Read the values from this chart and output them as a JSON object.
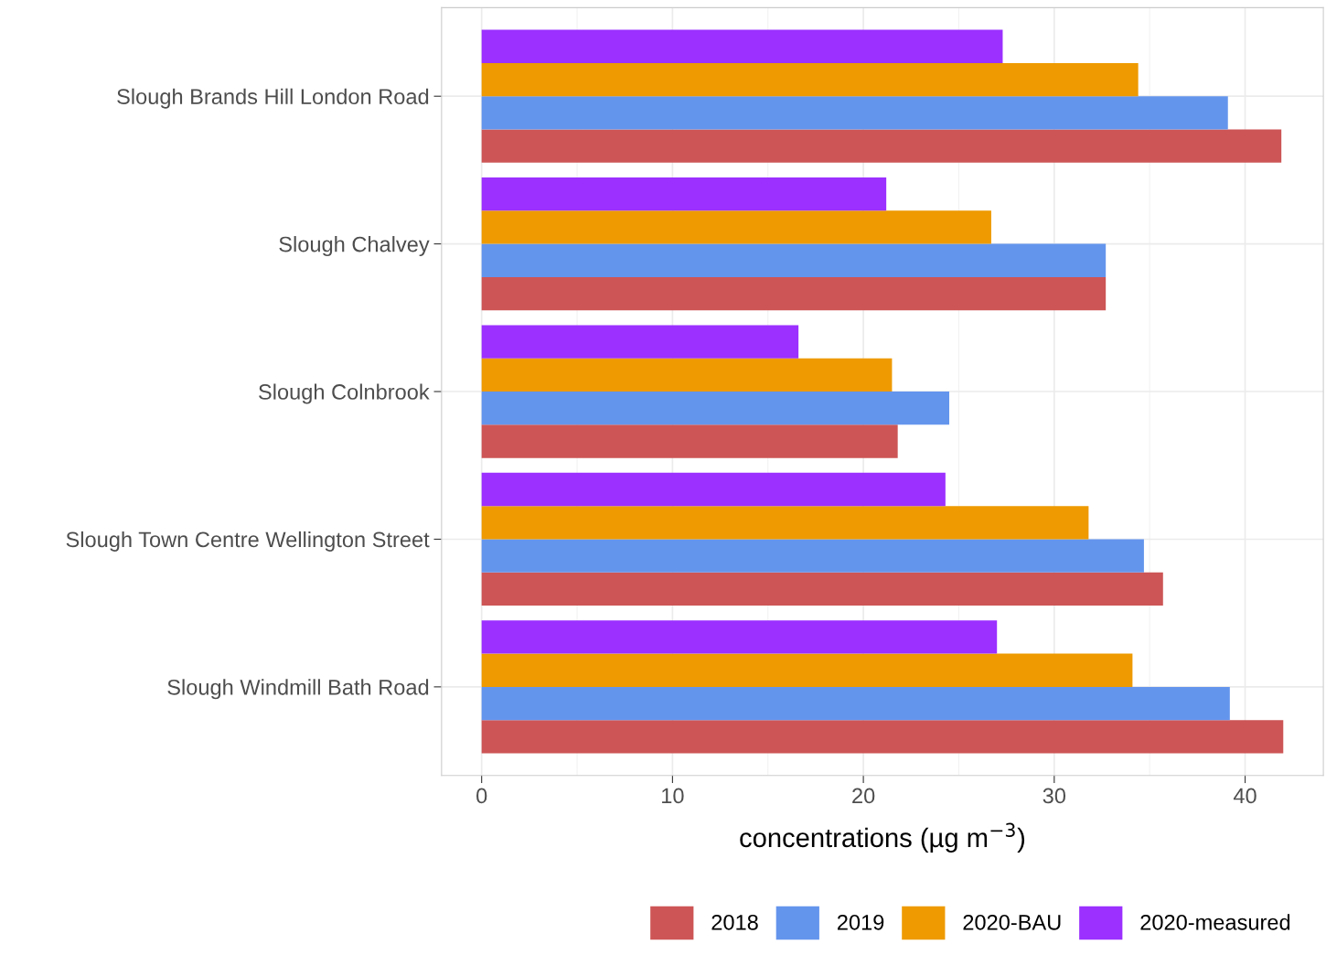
{
  "chart_data": {
    "type": "bar",
    "orientation": "horizontal",
    "categories": [
      "Slough Brands Hill London Road",
      "Slough Chalvey",
      "Slough Colnbrook",
      "Slough Town Centre Wellington Street",
      "Slough Windmill Bath Road"
    ],
    "series": [
      {
        "name": "2018",
        "color": "#cd5555",
        "values": [
          41.9,
          32.7,
          21.8,
          35.7,
          42.0
        ]
      },
      {
        "name": "2019",
        "color": "#6495ed",
        "values": [
          39.1,
          32.7,
          24.5,
          34.7,
          39.2
        ]
      },
      {
        "name": "2020-BAU",
        "color": "#ee9a00",
        "values": [
          34.4,
          26.7,
          21.5,
          31.8,
          34.1
        ]
      },
      {
        "name": "2020-measured",
        "color": "#9b30ff",
        "values": [
          27.3,
          21.2,
          16.6,
          24.3,
          27.0
        ]
      }
    ],
    "xlabel": "concentrations (µg m$^{−3}$)",
    "xlim": [
      -2.1,
      44.1
    ],
    "xticks": [
      0,
      10,
      20,
      30,
      40
    ],
    "grid": true,
    "legend": "bottom"
  }
}
